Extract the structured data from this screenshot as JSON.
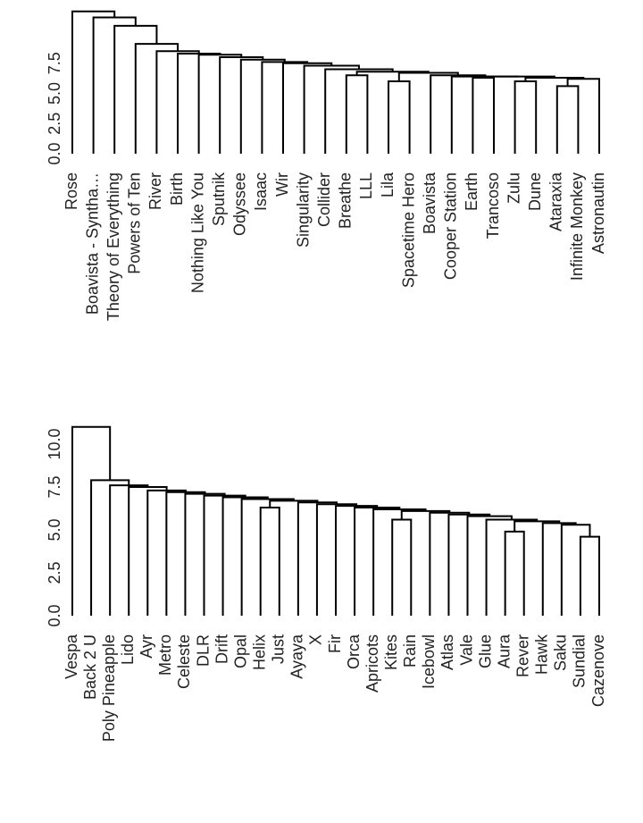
{
  "chart_data": [
    {
      "type": "dendrogram",
      "ylim": [
        0,
        12
      ],
      "yticks": [
        0.0,
        2.5,
        5.0,
        7.5
      ],
      "ytick_labels": [
        "0.0",
        "2.5",
        "5.0",
        "7.5"
      ],
      "leaves": [
        "Rose",
        "Boavista - Syntha…",
        "Theory of Everything",
        "Powers of Ten",
        "River",
        "Birth",
        "Nothing Like You",
        "Sputnik",
        "Odyssee",
        "Isaac",
        "Wir",
        "Singularity",
        "Collider",
        "Breathe",
        "LLL",
        "Lila",
        "Spacetime Hero",
        "Boavista",
        "Cooper Station",
        "Earth",
        "Trancoso",
        "Zulu",
        "Dune",
        "Ataraxia",
        "Infinite Monkey",
        "Astronautin"
      ],
      "chain_heights": [
        11.8,
        11.3,
        10.6,
        9.1,
        8.5,
        8.3,
        8.2,
        8.0,
        7.8,
        7.6,
        7.5,
        7.3,
        7.0,
        6.8,
        6.7,
        6.5,
        6.4,
        6.4,
        6.3,
        6.2,
        6.1,
        5.9,
        5.7,
        5.4,
        5.2
      ],
      "sub_merges": [
        {
          "leaves": [
            13,
            14
          ],
          "height": 6.5
        },
        {
          "leaves": [
            15,
            16
          ],
          "height": 6.0
        },
        {
          "leaves": [
            19,
            20
          ],
          "height": 6.3
        },
        {
          "leaves": [
            21,
            22
          ],
          "height": 6.0
        },
        {
          "leaves": [
            23,
            24
          ],
          "height": 5.6
        }
      ]
    },
    {
      "type": "dendrogram",
      "ylim": [
        0,
        12
      ],
      "yticks": [
        0.0,
        2.5,
        5.0,
        7.5,
        10.0
      ],
      "ytick_labels": [
        "0.0",
        "2.5",
        "5.0",
        "7.5",
        "10.0"
      ],
      "leaves": [
        "Vespa",
        "Back 2 U",
        "Poly Pineapple",
        "Lido",
        "Ayr",
        "Metro",
        "Celeste",
        "DLR",
        "Drift",
        "Opal",
        "Helix",
        "Just",
        "Ayaya",
        "X",
        "Fir",
        "Orca",
        "Apricots",
        "Kites",
        "Rain",
        "Icebowl",
        "Atlas",
        "Vale",
        "Glue",
        "Aura",
        "Rever",
        "Hawk",
        "Saku",
        "Sundial",
        "Cazenove"
      ],
      "chain_heights": [
        11.0,
        7.9,
        7.6,
        7.5,
        7.3,
        7.2,
        7.1,
        7.0,
        6.9,
        6.8,
        6.7,
        6.6,
        6.5,
        6.4,
        6.3,
        6.2,
        6.1,
        6.0,
        5.9,
        5.8,
        5.6,
        5.5,
        5.4,
        5.3,
        5.2,
        5.1,
        5.0,
        4.9
      ],
      "sub_merges": [
        {
          "leaves": [
            10,
            11
          ],
          "height": 6.3
        },
        {
          "leaves": [
            17,
            18
          ],
          "height": 5.6
        },
        {
          "leaves": [
            23,
            24
          ],
          "height": 4.9
        },
        {
          "leaves": [
            27,
            28
          ],
          "height": 4.6
        }
      ]
    }
  ]
}
